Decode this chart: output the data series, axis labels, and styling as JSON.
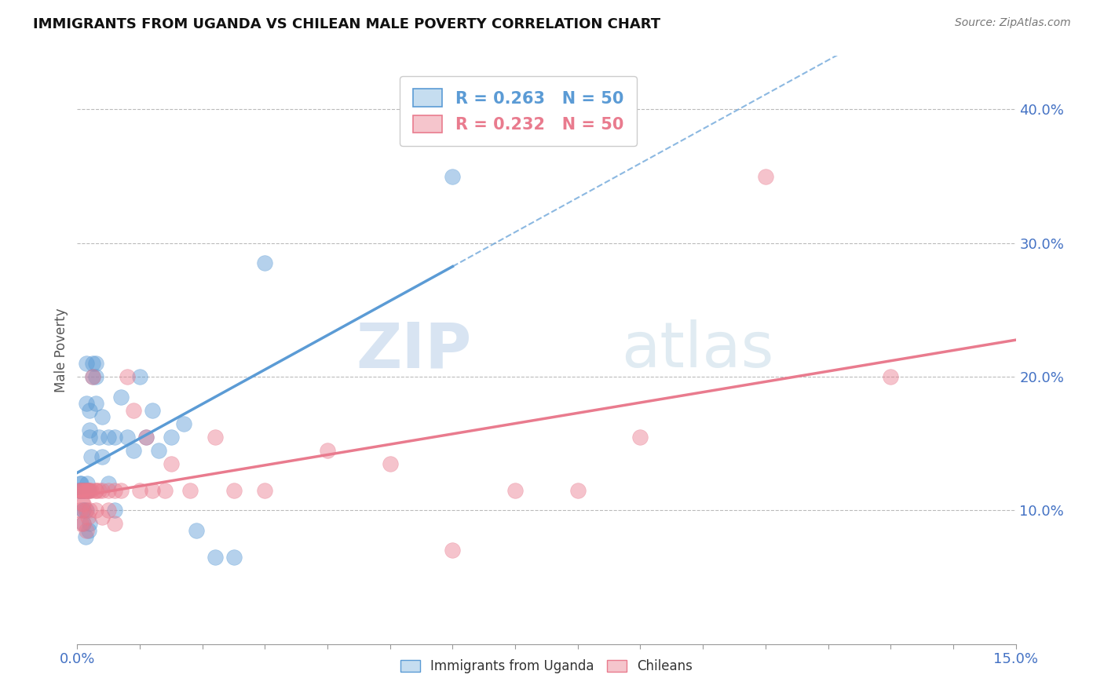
{
  "title": "IMMIGRANTS FROM UGANDA VS CHILEAN MALE POVERTY CORRELATION CHART",
  "source": "Source: ZipAtlas.com",
  "ylabel": "Male Poverty",
  "xlim": [
    0.0,
    0.15
  ],
  "ylim": [
    0.0,
    0.44
  ],
  "yticks": [
    0.1,
    0.2,
    0.3,
    0.4
  ],
  "ytick_labels": [
    "10.0%",
    "20.0%",
    "30.0%",
    "40.0%"
  ],
  "R_uganda": 0.263,
  "N_uganda": 50,
  "R_chilean": 0.232,
  "N_chilean": 50,
  "color_uganda": "#5b9bd5",
  "color_chilean": "#e97b8e",
  "watermark_text": "ZIPatlas",
  "uganda_x": [
    0.0002,
    0.0003,
    0.0004,
    0.0005,
    0.0006,
    0.0006,
    0.0008,
    0.0009,
    0.001,
    0.001,
    0.001,
    0.0012,
    0.0013,
    0.0014,
    0.0015,
    0.0015,
    0.0016,
    0.0017,
    0.0018,
    0.0019,
    0.002,
    0.002,
    0.002,
    0.0022,
    0.0025,
    0.0025,
    0.003,
    0.003,
    0.003,
    0.0035,
    0.004,
    0.004,
    0.005,
    0.005,
    0.006,
    0.006,
    0.007,
    0.008,
    0.009,
    0.01,
    0.011,
    0.012,
    0.013,
    0.015,
    0.017,
    0.019,
    0.022,
    0.025,
    0.03,
    0.06
  ],
  "uganda_y": [
    0.115,
    0.115,
    0.12,
    0.115,
    0.115,
    0.12,
    0.115,
    0.1,
    0.115,
    0.09,
    0.1,
    0.115,
    0.08,
    0.1,
    0.21,
    0.18,
    0.12,
    0.115,
    0.085,
    0.09,
    0.16,
    0.175,
    0.155,
    0.14,
    0.21,
    0.2,
    0.21,
    0.2,
    0.18,
    0.155,
    0.17,
    0.14,
    0.155,
    0.12,
    0.155,
    0.1,
    0.185,
    0.155,
    0.145,
    0.2,
    0.155,
    0.175,
    0.145,
    0.155,
    0.165,
    0.085,
    0.065,
    0.065,
    0.285,
    0.35
  ],
  "chilean_x": [
    0.0003,
    0.0004,
    0.0005,
    0.0006,
    0.0007,
    0.0008,
    0.0009,
    0.001,
    0.001,
    0.0012,
    0.0013,
    0.0014,
    0.0015,
    0.0016,
    0.0017,
    0.0018,
    0.002,
    0.002,
    0.0022,
    0.0025,
    0.003,
    0.003,
    0.003,
    0.0035,
    0.004,
    0.004,
    0.005,
    0.005,
    0.006,
    0.006,
    0.007,
    0.008,
    0.009,
    0.01,
    0.011,
    0.012,
    0.014,
    0.015,
    0.018,
    0.022,
    0.025,
    0.03,
    0.04,
    0.05,
    0.06,
    0.07,
    0.08,
    0.09,
    0.11,
    0.13
  ],
  "chilean_y": [
    0.115,
    0.1,
    0.115,
    0.09,
    0.115,
    0.105,
    0.115,
    0.105,
    0.09,
    0.115,
    0.1,
    0.085,
    0.115,
    0.115,
    0.095,
    0.115,
    0.115,
    0.1,
    0.115,
    0.2,
    0.115,
    0.115,
    0.1,
    0.115,
    0.115,
    0.095,
    0.115,
    0.1,
    0.115,
    0.09,
    0.115,
    0.2,
    0.175,
    0.115,
    0.155,
    0.115,
    0.115,
    0.135,
    0.115,
    0.155,
    0.115,
    0.115,
    0.145,
    0.135,
    0.07,
    0.115,
    0.115,
    0.155,
    0.35,
    0.2
  ]
}
